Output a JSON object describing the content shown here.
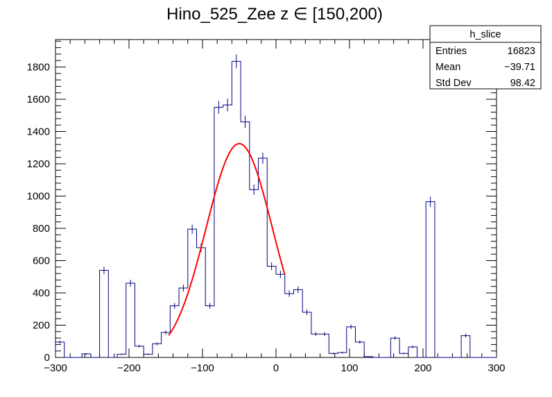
{
  "chart_data": {
    "type": "histogram",
    "title": "Hino_525_Zee z  ∈ [150,200)",
    "xlabel": "",
    "ylabel": "",
    "xlim": [
      -300,
      300
    ],
    "ylim": [
      0,
      1970
    ],
    "bin_width": 12,
    "x_ticks": [
      -300,
      -200,
      -100,
      0,
      100,
      200,
      300
    ],
    "x_tick_labels": [
      "−300",
      "−200",
      "−100",
      "0",
      "100",
      "200",
      "300"
    ],
    "y_ticks": [
      0,
      200,
      400,
      600,
      800,
      1000,
      1200,
      1400,
      1600,
      1800
    ],
    "y_tick_labels": [
      "0",
      "200",
      "400",
      "600",
      "800",
      "1000",
      "1200",
      "1400",
      "1600",
      "1800"
    ],
    "grid": false,
    "legend": "none",
    "histogram_color": "#000080",
    "fit_color": "#ff0000",
    "bins": [
      {
        "x": -294,
        "y": 95
      },
      {
        "x": -282,
        "y": 0
      },
      {
        "x": -270,
        "y": 0
      },
      {
        "x": -258,
        "y": 22
      },
      {
        "x": -246,
        "y": 0
      },
      {
        "x": -234,
        "y": 540
      },
      {
        "x": -222,
        "y": 0
      },
      {
        "x": -210,
        "y": 20
      },
      {
        "x": -198,
        "y": 460
      },
      {
        "x": -186,
        "y": 70
      },
      {
        "x": -174,
        "y": 20
      },
      {
        "x": -162,
        "y": 85
      },
      {
        "x": -150,
        "y": 155
      },
      {
        "x": -138,
        "y": 320
      },
      {
        "x": -126,
        "y": 430
      },
      {
        "x": -114,
        "y": 795
      },
      {
        "x": -102,
        "y": 680
      },
      {
        "x": -90,
        "y": 320
      },
      {
        "x": -78,
        "y": 1550
      },
      {
        "x": -66,
        "y": 1565
      },
      {
        "x": -54,
        "y": 1835
      },
      {
        "x": -42,
        "y": 1460
      },
      {
        "x": -30,
        "y": 1040
      },
      {
        "x": -18,
        "y": 1235
      },
      {
        "x": -6,
        "y": 565
      },
      {
        "x": 6,
        "y": 515
      },
      {
        "x": 18,
        "y": 395
      },
      {
        "x": 30,
        "y": 420
      },
      {
        "x": 42,
        "y": 280
      },
      {
        "x": 54,
        "y": 145
      },
      {
        "x": 66,
        "y": 145
      },
      {
        "x": 78,
        "y": 25
      },
      {
        "x": 90,
        "y": 30
      },
      {
        "x": 102,
        "y": 190
      },
      {
        "x": 114,
        "y": 95
      },
      {
        "x": 126,
        "y": 5
      },
      {
        "x": 138,
        "y": 0
      },
      {
        "x": 150,
        "y": 0
      },
      {
        "x": 162,
        "y": 120
      },
      {
        "x": 174,
        "y": 25
      },
      {
        "x": 186,
        "y": 65
      },
      {
        "x": 198,
        "y": 0
      },
      {
        "x": 210,
        "y": 965
      },
      {
        "x": 222,
        "y": 0
      },
      {
        "x": 234,
        "y": 0
      },
      {
        "x": 246,
        "y": 0
      },
      {
        "x": 258,
        "y": 135
      },
      {
        "x": 270,
        "y": 0
      },
      {
        "x": 282,
        "y": 0
      },
      {
        "x": 294,
        "y": 0
      }
    ],
    "fit": {
      "function": "gaus",
      "constant": 1325,
      "mean": -50,
      "sigma": 45,
      "x_range": [
        -146,
        12
      ]
    },
    "stats_box": {
      "name": "h_slice",
      "rows": [
        {
          "label": "Entries",
          "value": "16823"
        },
        {
          "label": "Mean",
          "value": "−39.71"
        },
        {
          "label": "Std Dev",
          "value": "98.42"
        }
      ]
    }
  }
}
